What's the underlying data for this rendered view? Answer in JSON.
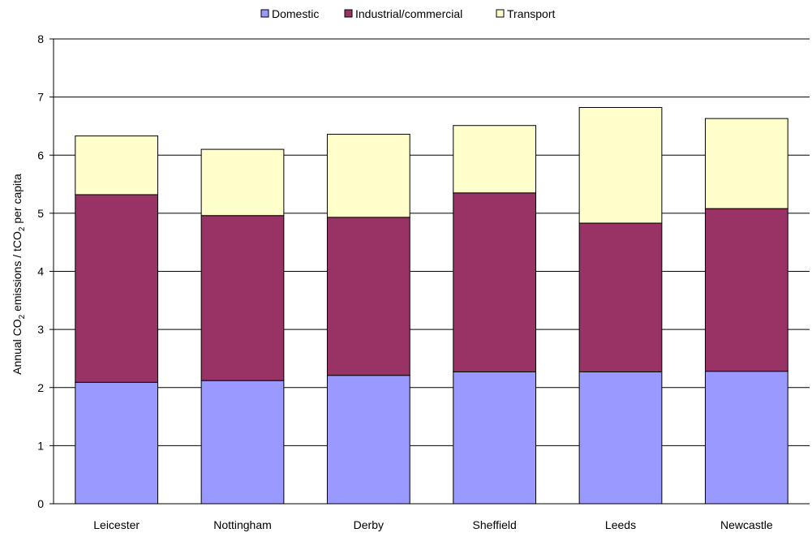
{
  "chart_data": {
    "type": "bar",
    "stacked": true,
    "categories": [
      "Leicester",
      "Nottingham",
      "Derby",
      "Sheffield",
      "Leeds",
      "Newcastle"
    ],
    "series": [
      {
        "name": "Domestic",
        "color": "#9999ff",
        "values": [
          2.09,
          2.12,
          2.21,
          2.27,
          2.27,
          2.28
        ]
      },
      {
        "name": "Industrial/commercial",
        "color": "#993366",
        "values": [
          3.23,
          2.84,
          2.72,
          3.08,
          2.56,
          2.8
        ]
      },
      {
        "name": "Transport",
        "color": "#ffffcc",
        "values": [
          1.01,
          1.14,
          1.43,
          1.16,
          1.99,
          1.55
        ]
      }
    ],
    "ylabel_parts": {
      "pre": "Annual CO",
      "sub1": "2",
      "mid": " emissions / tCO",
      "sub2": "2",
      "post": " per capita"
    },
    "ylim": [
      0,
      8
    ],
    "yticks": [
      "0",
      "1",
      "2",
      "3",
      "4",
      "5",
      "6",
      "7",
      "8"
    ],
    "grid": true,
    "legend_position": "top-center"
  }
}
